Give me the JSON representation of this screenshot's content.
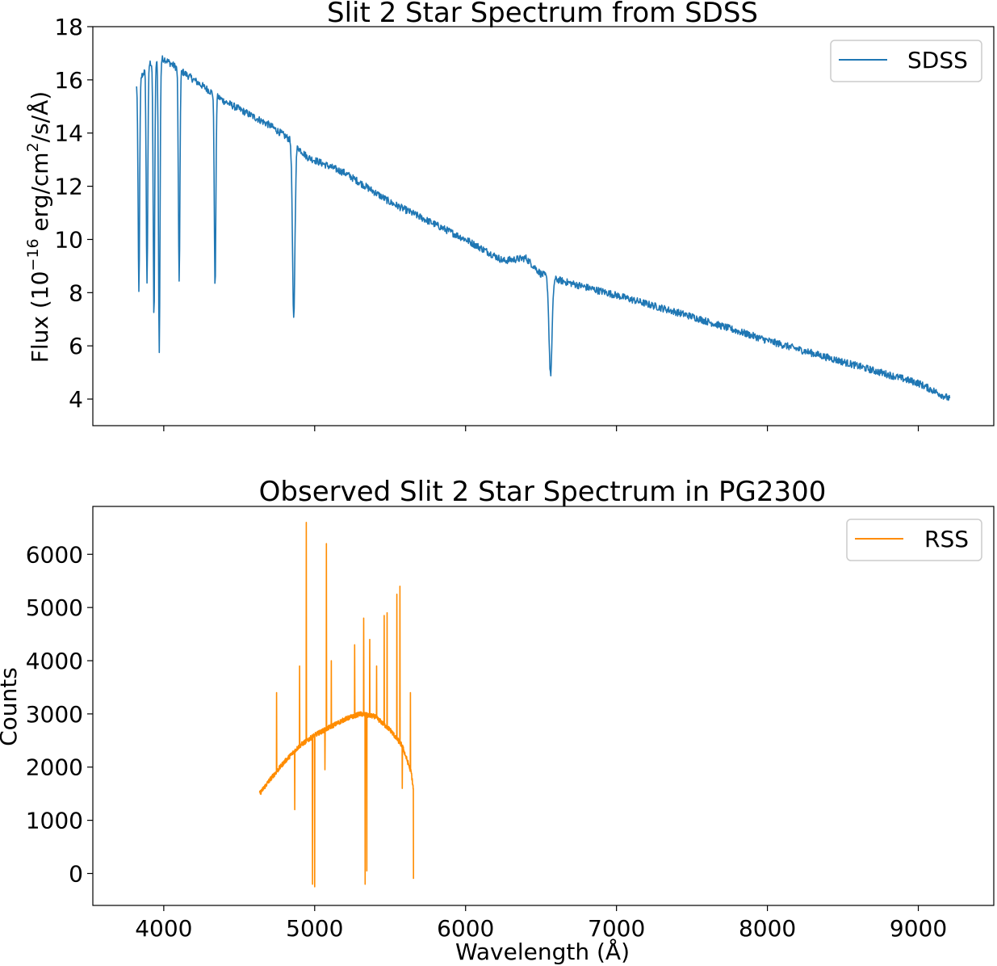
{
  "chart_data": [
    {
      "type": "line",
      "title": "Slit 2 Star Spectrum from SDSS",
      "xlabel": "",
      "ylabel_parts": [
        "Flux (10",
        "−16",
        " erg/cm",
        "2",
        "/s/Å)"
      ],
      "xlim": [
        3530,
        9500
      ],
      "ylim": [
        3.0,
        18.0
      ],
      "x_ticks": [
        4000,
        5000,
        6000,
        7000,
        8000,
        9000
      ],
      "x_tick_labels_shown": false,
      "y_ticks": [
        4,
        6,
        8,
        10,
        12,
        14,
        16,
        18
      ],
      "y_tick_labels": [
        "4",
        "6",
        "8",
        "10",
        "12",
        "14",
        "16",
        "18"
      ],
      "grid": false,
      "legend_position": "top-right",
      "series": [
        {
          "name": "SDSS",
          "color": "#1f77b4",
          "continuum": [
            [
              3820,
              15.8
            ],
            [
              3900,
              16.6
            ],
            [
              4000,
              16.8
            ],
            [
              4200,
              16.0
            ],
            [
              4400,
              15.2
            ],
            [
              4700,
              14.3
            ],
            [
              4850,
              13.7
            ],
            [
              4950,
              13.1
            ],
            [
              5200,
              12.5
            ],
            [
              5500,
              11.4
            ],
            [
              6000,
              10.0
            ],
            [
              6250,
              9.2
            ],
            [
              6400,
              9.3
            ],
            [
              6500,
              8.7
            ],
            [
              6600,
              8.5
            ],
            [
              7000,
              7.9
            ],
            [
              7500,
              7.1
            ],
            [
              8000,
              6.2
            ],
            [
              8500,
              5.4
            ],
            [
              9000,
              4.6
            ],
            [
              9210,
              4.0
            ]
          ],
          "absorption_lines": [
            {
              "x": 3835,
              "min": 8.0
            },
            {
              "x": 3889,
              "min": 8.4
            },
            {
              "x": 3935,
              "min": 7.0
            },
            {
              "x": 3970,
              "min": 5.7
            },
            {
              "x": 4102,
              "min": 8.3
            },
            {
              "x": 4340,
              "min": 8.1
            },
            {
              "x": 4861,
              "min": 7.0
            },
            {
              "x": 6563,
              "min": 4.9
            }
          ]
        }
      ]
    },
    {
      "type": "line",
      "title": "Observed Slit 2 Star Spectrum in PG2300",
      "xlabel": "Wavelength (Å)",
      "ylabel": "Counts",
      "xlim": [
        3530,
        9500
      ],
      "ylim": [
        -600,
        6900
      ],
      "x_ticks": [
        4000,
        5000,
        6000,
        7000,
        8000,
        9000
      ],
      "x_tick_labels": [
        "4000",
        "5000",
        "6000",
        "7000",
        "8000",
        "9000"
      ],
      "y_ticks": [
        0,
        1000,
        2000,
        3000,
        4000,
        5000,
        6000
      ],
      "y_tick_labels": [
        "0",
        "1000",
        "2000",
        "3000",
        "4000",
        "5000",
        "6000"
      ],
      "grid": false,
      "legend_position": "top-right",
      "series": [
        {
          "name": "RSS",
          "color": "#ff8c00",
          "continuum": [
            [
              4635,
              1500
            ],
            [
              4700,
              1750
            ],
            [
              4800,
              2100
            ],
            [
              4900,
              2400
            ],
            [
              5000,
              2600
            ],
            [
              5100,
              2750
            ],
            [
              5200,
              2900
            ],
            [
              5300,
              3000
            ],
            [
              5400,
              2950
            ],
            [
              5500,
              2700
            ],
            [
              5580,
              2400
            ],
            [
              5640,
              1900
            ],
            [
              5655,
              1550
            ]
          ],
          "spikes": [
            {
              "x": 4748,
              "v": 3400
            },
            {
              "x": 4868,
              "v": 1200
            },
            {
              "x": 4900,
              "v": 3900
            },
            {
              "x": 4945,
              "v": 6600
            },
            {
              "x": 4985,
              "v": -200
            },
            {
              "x": 5000,
              "v": -250
            },
            {
              "x": 5068,
              "v": 1950
            },
            {
              "x": 5078,
              "v": 6200
            },
            {
              "x": 5110,
              "v": 4000
            },
            {
              "x": 5265,
              "v": 4300
            },
            {
              "x": 5325,
              "v": 4800
            },
            {
              "x": 5335,
              "v": -200
            },
            {
              "x": 5345,
              "v": 50
            },
            {
              "x": 5365,
              "v": 4400
            },
            {
              "x": 5410,
              "v": 3900
            },
            {
              "x": 5460,
              "v": 4850
            },
            {
              "x": 5480,
              "v": 4900
            },
            {
              "x": 5545,
              "v": 5250
            },
            {
              "x": 5565,
              "v": 5400
            },
            {
              "x": 5580,
              "v": 1600
            },
            {
              "x": 5635,
              "v": 3400
            },
            {
              "x": 5655,
              "v": -100
            }
          ]
        }
      ]
    }
  ]
}
